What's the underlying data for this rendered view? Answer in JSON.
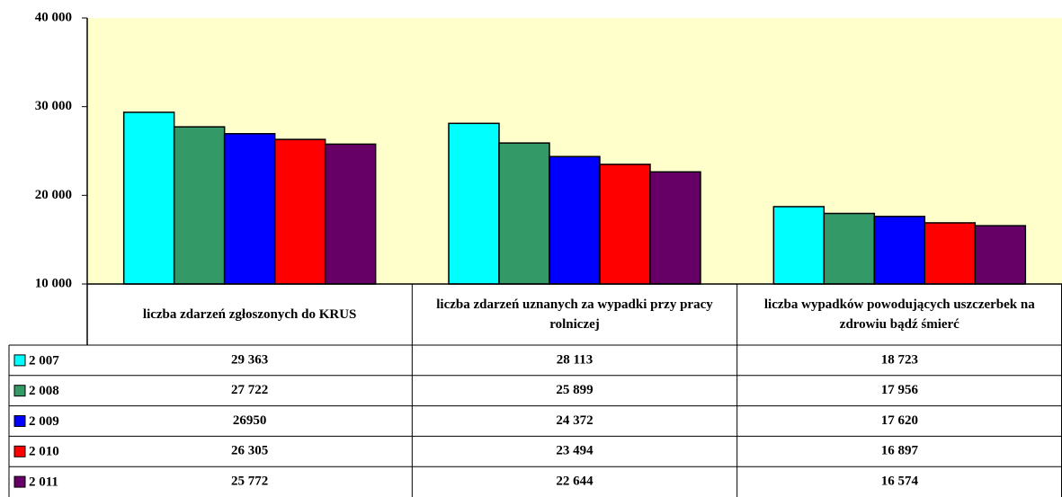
{
  "chart_data": {
    "type": "bar",
    "categories": [
      "liczba zdarzeń  zgłoszonych do KRUS",
      "liczba zdarzeń uznanych za wypadki przy pracy rolniczej",
      "liczba wypadków powodujących uszczerbek na zdrowiu bądź śmierć"
    ],
    "series": [
      {
        "name": "2 007",
        "color": "#00ffff",
        "values": [
          29363,
          28113,
          18723
        ],
        "value_labels": [
          "29 363",
          "28 113",
          "18 723"
        ]
      },
      {
        "name": "2 008",
        "color": "#339966",
        "values": [
          27722,
          25899,
          17956
        ],
        "value_labels": [
          "27 722",
          "25 899",
          "17 956"
        ]
      },
      {
        "name": "2 009",
        "color": "#0000ff",
        "values": [
          26950,
          24372,
          17620
        ],
        "value_labels": [
          "26950",
          "24 372",
          "17 620"
        ]
      },
      {
        "name": "2 010",
        "color": "#ff0000",
        "values": [
          26305,
          23494,
          16897
        ],
        "value_labels": [
          "26 305",
          "23 494",
          "16 897"
        ]
      },
      {
        "name": "2 011",
        "color": "#660066",
        "values": [
          25772,
          22644,
          16574
        ],
        "value_labels": [
          "25 772",
          "22 644",
          "16 574"
        ]
      }
    ],
    "ylim": [
      10000,
      40000
    ],
    "yticks": [
      {
        "value": 10000,
        "label": "10 000"
      },
      {
        "value": 20000,
        "label": "20 000"
      },
      {
        "value": 30000,
        "label": "30 000"
      },
      {
        "value": 40000,
        "label": "40 000"
      }
    ],
    "plot_background": "#ffffcc"
  }
}
